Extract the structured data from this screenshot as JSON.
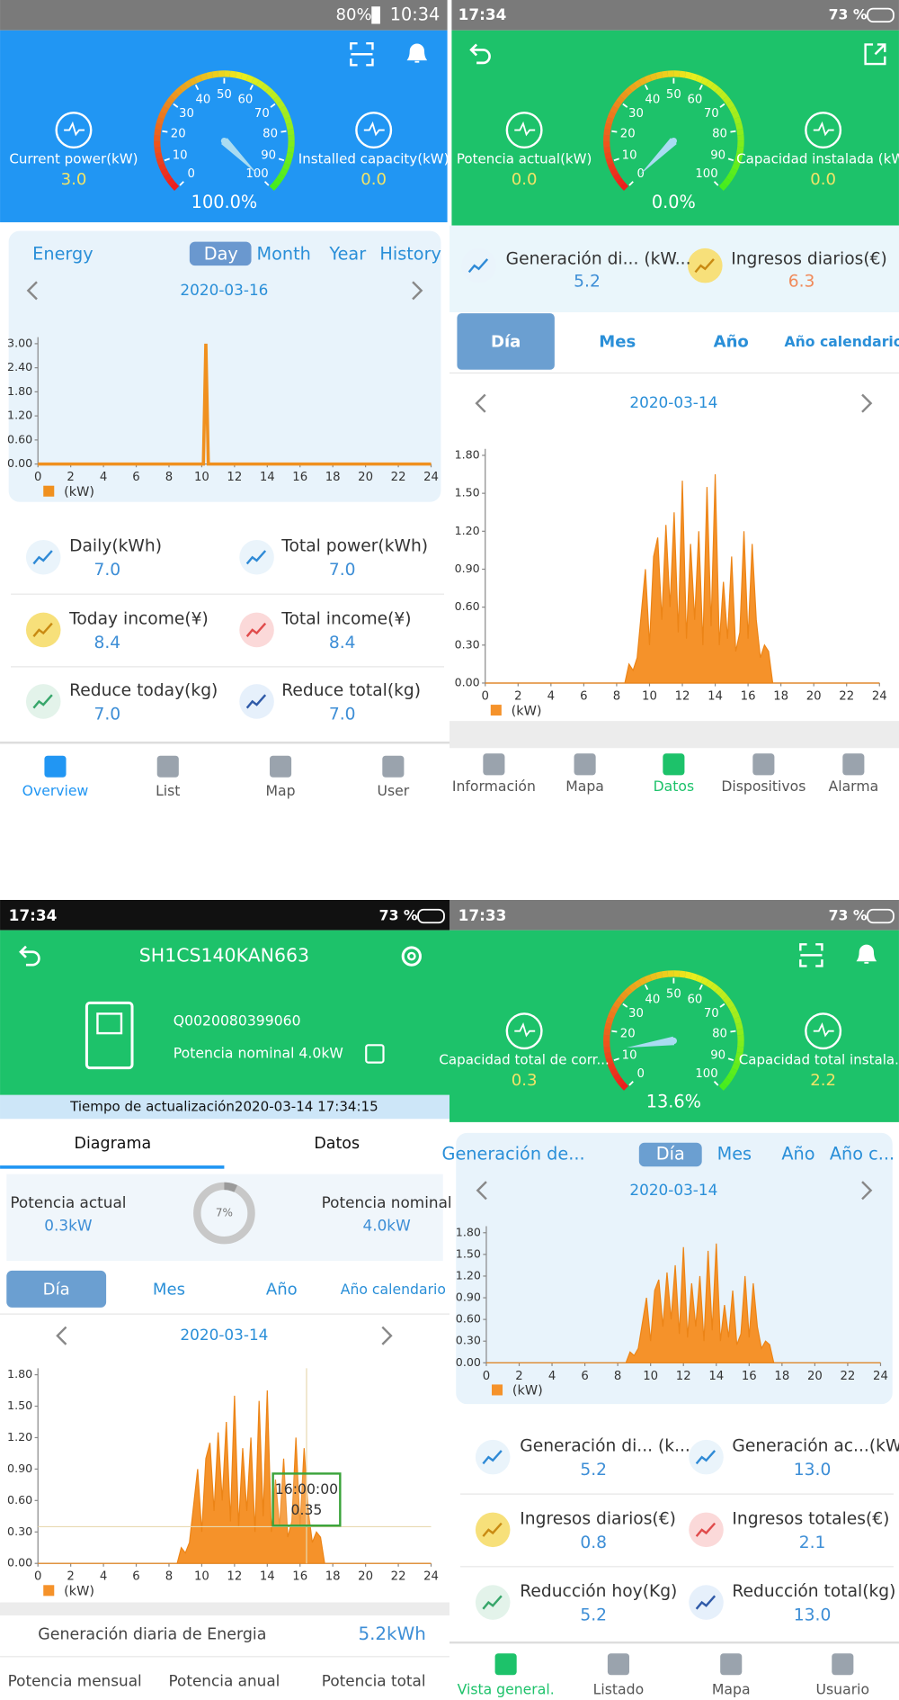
{
  "screens": [
    {
      "status": {
        "battery": "80%",
        "time": "10:34"
      },
      "gauge": {
        "ticks": [
          0,
          10,
          20,
          30,
          40,
          50,
          60,
          70,
          80,
          90,
          100
        ],
        "percent": {
          "value": 100,
          "label": "100.0%"
        },
        "left": {
          "label": "Current power(kW)",
          "value": "3.0"
        },
        "right": {
          "label": "Installed capacity(kW)",
          "value": "0.0"
        }
      },
      "tabs": [
        "Energy",
        "Day",
        "Month",
        "Year",
        "History"
      ],
      "date": "2020-03-16",
      "chart": {
        "type": "line",
        "x": [
          0,
          10.1,
          10.25,
          10.4,
          24
        ],
        "values": [
          0,
          0,
          3.0,
          0,
          0
        ],
        "color": "#f0901e",
        "xlim": [
          0,
          24
        ],
        "ylim": [
          0,
          3
        ],
        "xticks": [
          0,
          2,
          4,
          6,
          8,
          10,
          12,
          14,
          16,
          18,
          20,
          22,
          24
        ],
        "yticks": [
          {
            "value": 0,
            "label": "0.00"
          },
          {
            "value": 0.6,
            "label": "0.60"
          },
          {
            "value": 1.2,
            "label": "1.20"
          },
          {
            "value": 1.8,
            "label": "1.80"
          },
          {
            "value": 2.4,
            "label": "2.40"
          },
          {
            "value": 3,
            "label": "3.00"
          }
        ],
        "legend": "(kW)"
      },
      "stats": [
        {
          "label": "Daily(kWh)",
          "value": "7.0"
        },
        {
          "label": "Total power(kWh)",
          "value": "7.0"
        },
        {
          "label": "Today income(¥)",
          "value": "8.4"
        },
        {
          "label": "Total income(¥)",
          "value": "8.4"
        },
        {
          "label": "Reduce today(kg)",
          "value": "7.0"
        },
        {
          "label": "Reduce total(kg)",
          "value": "7.0"
        }
      ],
      "nav": [
        "Overview",
        "List",
        "Map",
        "User"
      ]
    },
    {
      "status": {
        "time": "17:34",
        "battery": "73 %"
      },
      "gauge": {
        "ticks": [
          0,
          10,
          20,
          30,
          40,
          50,
          60,
          70,
          80,
          90,
          100
        ],
        "percent": {
          "value": 0,
          "label": "0.0%"
        },
        "left": {
          "label": "Potencia actual(kW)",
          "value": "0.0"
        },
        "right": {
          "label": "Capacidad instalada (kW)",
          "value": "0.0"
        }
      },
      "stats": [
        {
          "label": "Generación di... (kW...",
          "value": "5.2"
        },
        {
          "label": "Ingresos diarios(€)",
          "value": "6.3"
        }
      ],
      "tabs": [
        "Día",
        "Mes",
        "Año",
        "Año calendario"
      ],
      "date": "2020-03-14",
      "chart": {
        "type": "area",
        "x": [
          0,
          8.5,
          8.75,
          9,
          9.25,
          9.5,
          9.75,
          10,
          10.25,
          10.5,
          10.75,
          11,
          11.25,
          11.5,
          11.75,
          12,
          12.25,
          12.5,
          12.75,
          13,
          13.25,
          13.5,
          13.75,
          14,
          14.25,
          14.5,
          14.75,
          15,
          15.25,
          15.5,
          15.75,
          16,
          16.25,
          16.5,
          16.75,
          17,
          17.25,
          17.5,
          24
        ],
        "values": [
          0,
          0,
          0.15,
          0.1,
          0.2,
          0.55,
          0.9,
          0.3,
          1.0,
          1.15,
          0.5,
          1.25,
          0.6,
          1.35,
          0.4,
          1.6,
          0.35,
          1.1,
          0.5,
          1.2,
          0.3,
          1.55,
          0.45,
          1.65,
          0.3,
          0.8,
          0.35,
          1.0,
          0.25,
          0.4,
          1.2,
          0.35,
          1.1,
          0.5,
          0.2,
          0.3,
          0.25,
          0,
          0
        ],
        "color": "#f5922a",
        "xlim": [
          0,
          24
        ],
        "ylim": [
          0,
          1.8
        ],
        "xticks": [
          0,
          2,
          4,
          6,
          8,
          10,
          12,
          14,
          16,
          18,
          20,
          22,
          24
        ],
        "yticks": [
          {
            "value": 0,
            "label": "0.00"
          },
          {
            "value": 0.3,
            "label": "0.30"
          },
          {
            "value": 0.6,
            "label": "0.60"
          },
          {
            "value": 0.9,
            "label": "0.90"
          },
          {
            "value": 1.2,
            "label": "1.20"
          },
          {
            "value": 1.5,
            "label": "1.50"
          },
          {
            "value": 1.8,
            "label": "1.80"
          }
        ],
        "legend": "(kW)"
      },
      "nav": [
        "Información",
        "Mapa",
        "Datos",
        "Dispositivos",
        "Alarma"
      ]
    },
    {
      "status": {
        "time": "17:34",
        "battery": "73 %"
      },
      "title": "SH1CS140KAN663",
      "device": {
        "id": "Q0020080399060",
        "nominal": "Potencia nominal  4.0kW"
      },
      "update": "Tiempo de actualización2020-03-14 17:34:15",
      "view_tabs": [
        "Diagrama",
        "Datos"
      ],
      "power": {
        "current_label": "Potencia actual",
        "current": "0.3kW",
        "ring": {
          "value": 7,
          "label": "7%"
        },
        "nominal_label": "Potencia nominal",
        "nominal": "4.0kW"
      },
      "tabs": [
        "Día",
        "Mes",
        "Año",
        "Año calendario"
      ],
      "date": "2020-03-14",
      "chart": {
        "type": "area",
        "x": [
          0,
          8.5,
          8.75,
          9,
          9.25,
          9.5,
          9.75,
          10,
          10.25,
          10.5,
          10.75,
          11,
          11.25,
          11.5,
          11.75,
          12,
          12.25,
          12.5,
          12.75,
          13,
          13.25,
          13.5,
          13.75,
          14,
          14.25,
          14.5,
          14.75,
          15,
          15.25,
          15.5,
          15.75,
          16,
          16.25,
          16.5,
          16.75,
          17,
          17.25,
          17.5,
          24
        ],
        "values": [
          0,
          0,
          0.15,
          0.1,
          0.2,
          0.55,
          0.9,
          0.3,
          1.0,
          1.15,
          0.5,
          1.25,
          0.6,
          1.35,
          0.4,
          1.6,
          0.35,
          1.1,
          0.5,
          1.2,
          0.3,
          1.55,
          0.45,
          1.65,
          0.3,
          0.8,
          0.35,
          1.0,
          0.25,
          0.4,
          1.2,
          0.35,
          1.1,
          0.5,
          0.2,
          0.3,
          0.25,
          0,
          0
        ],
        "color": "#f5922a",
        "xlim": [
          0,
          24
        ],
        "ylim": [
          0,
          1.8
        ],
        "xticks": [
          0,
          2,
          4,
          6,
          8,
          10,
          12,
          14,
          16,
          18,
          20,
          22,
          24
        ],
        "yticks": [
          {
            "value": 0,
            "label": "0.00"
          },
          {
            "value": 0.3,
            "label": "0.30"
          },
          {
            "value": 0.6,
            "label": "0.60"
          },
          {
            "value": 0.9,
            "label": "0.90"
          },
          {
            "value": 1.2,
            "label": "1.20"
          },
          {
            "value": 1.5,
            "label": "1.50"
          },
          {
            "value": 1.8,
            "label": "1.80"
          }
        ],
        "legend": "(kW)",
        "tooltip": {
          "time": "16:00:00",
          "value": 0.35
        }
      },
      "daily": {
        "label": "Generación diaria de Energia",
        "value": "5.2kWh"
      },
      "totals": [
        "Potencia mensual",
        "Potencia anual",
        "Potencia total"
      ]
    },
    {
      "status": {
        "time": "17:33",
        "battery": "73 %"
      },
      "gauge": {
        "ticks": [
          0,
          10,
          20,
          30,
          40,
          50,
          60,
          70,
          80,
          90,
          100
        ],
        "percent": {
          "value": 13.6,
          "label": "13.6%"
        },
        "left": {
          "label": "Capacidad total de corr...",
          "value": "0.3"
        },
        "right": {
          "label": "Capacidad total instala...",
          "value": "2.2"
        }
      },
      "tabs": [
        "Generación de...",
        "Día",
        "Mes",
        "Año",
        "Año c..."
      ],
      "date": "2020-03-14",
      "chart": {
        "type": "area",
        "x": [
          0,
          8.5,
          8.75,
          9,
          9.25,
          9.5,
          9.75,
          10,
          10.25,
          10.5,
          10.75,
          11,
          11.25,
          11.5,
          11.75,
          12,
          12.25,
          12.5,
          12.75,
          13,
          13.25,
          13.5,
          13.75,
          14,
          14.25,
          14.5,
          14.75,
          15,
          15.25,
          15.5,
          15.75,
          16,
          16.25,
          16.5,
          16.75,
          17,
          17.25,
          17.5,
          24
        ],
        "values": [
          0,
          0,
          0.15,
          0.1,
          0.2,
          0.55,
          0.9,
          0.3,
          1.0,
          1.15,
          0.5,
          1.25,
          0.6,
          1.35,
          0.4,
          1.6,
          0.35,
          1.1,
          0.5,
          1.2,
          0.3,
          1.55,
          0.45,
          1.65,
          0.3,
          0.8,
          0.35,
          1.0,
          0.25,
          0.4,
          1.2,
          0.35,
          1.1,
          0.5,
          0.2,
          0.3,
          0.25,
          0,
          0
        ],
        "color": "#f5922a",
        "xlim": [
          0,
          24
        ],
        "ylim": [
          0,
          1.8
        ],
        "xticks": [
          0,
          2,
          4,
          6,
          8,
          10,
          12,
          14,
          16,
          18,
          20,
          22,
          24
        ],
        "yticks": [
          {
            "value": 0,
            "label": "0.00"
          },
          {
            "value": 0.3,
            "label": "0.30"
          },
          {
            "value": 0.6,
            "label": "0.60"
          },
          {
            "value": 0.9,
            "label": "0.90"
          },
          {
            "value": 1.2,
            "label": "1.20"
          },
          {
            "value": 1.5,
            "label": "1.50"
          },
          {
            "value": 1.8,
            "label": "1.80"
          }
        ],
        "legend": "(kW)"
      },
      "stats": [
        {
          "label": "Generación di... (k...",
          "value": "5.2"
        },
        {
          "label": "Generación ac...(kW...",
          "value": "13.0"
        },
        {
          "label": "Ingresos diarios(€)",
          "value": "0.8"
        },
        {
          "label": "Ingresos totales(€)",
          "value": "2.1"
        },
        {
          "label": "Reducción hoy(Kg)",
          "value": "5.2"
        },
        {
          "label": "Reducción total(kg)",
          "value": "13.0"
        }
      ],
      "nav": [
        "Vista general.",
        "Listado",
        "Mapa",
        "Usuario"
      ]
    }
  ]
}
